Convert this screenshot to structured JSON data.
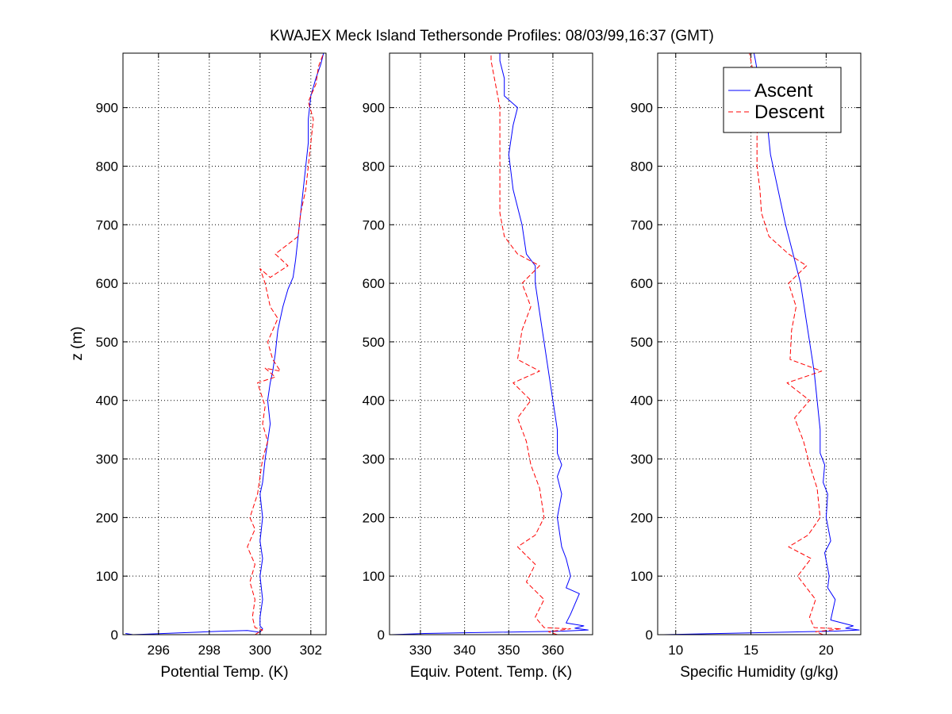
{
  "title": "KWAJEX Meck Island Tethersonde Profiles: 08/03/99,16:37 (GMT)",
  "ylabel": "z (m)",
  "legend": {
    "placement": "top-right of third panel",
    "entries": [
      "Ascent",
      "Descent"
    ]
  },
  "colors": {
    "ascent": "#0000ff",
    "descent": "#ff0000",
    "grid": "#000000",
    "axes": "#000000"
  },
  "chart_data": [
    {
      "type": "line",
      "xlabel": "Potential Temp. (K)",
      "xlim": [
        294.6,
        302.6
      ],
      "ylim": [
        0,
        993
      ],
      "xticks": [
        296,
        298,
        300,
        302
      ],
      "yticks": [
        0,
        100,
        200,
        300,
        400,
        500,
        600,
        700,
        800,
        900
      ],
      "grid": true,
      "series": [
        {
          "name": "Ascent",
          "style": "solid",
          "points": [
            [
              294.7,
              2
            ],
            [
              295.0,
              0
            ],
            [
              298.5,
              6
            ],
            [
              299.5,
              7
            ],
            [
              300.0,
              4
            ],
            [
              300.1,
              10
            ],
            [
              300.0,
              15
            ],
            [
              300.0,
              30
            ],
            [
              300.1,
              60
            ],
            [
              300.0,
              100
            ],
            [
              300.1,
              130
            ],
            [
              300.0,
              160
            ],
            [
              300.1,
              200
            ],
            [
              300.0,
              240
            ],
            [
              300.1,
              260
            ],
            [
              300.2,
              300
            ],
            [
              300.3,
              330
            ],
            [
              300.4,
              360
            ],
            [
              300.3,
              400
            ],
            [
              300.4,
              430
            ],
            [
              300.5,
              450
            ],
            [
              300.6,
              480
            ],
            [
              300.7,
              520
            ],
            [
              300.9,
              560
            ],
            [
              301.1,
              590
            ],
            [
              301.3,
              610
            ],
            [
              301.4,
              640
            ],
            [
              301.5,
              680
            ],
            [
              301.6,
              720
            ],
            [
              301.7,
              760
            ],
            [
              301.8,
              800
            ],
            [
              301.9,
              840
            ],
            [
              301.9,
              880
            ],
            [
              302.0,
              920
            ],
            [
              302.2,
              950
            ],
            [
              302.4,
              975
            ],
            [
              302.5,
              993
            ]
          ]
        },
        {
          "name": "Descent",
          "style": "dashed",
          "points": [
            [
              299.8,
              0
            ],
            [
              300.1,
              8
            ],
            [
              299.8,
              12
            ],
            [
              299.7,
              30
            ],
            [
              299.8,
              60
            ],
            [
              299.6,
              90
            ],
            [
              299.8,
              120
            ],
            [
              299.5,
              150
            ],
            [
              299.8,
              180
            ],
            [
              299.6,
              200
            ],
            [
              299.9,
              240
            ],
            [
              300.0,
              270
            ],
            [
              300.1,
              300
            ],
            [
              300.3,
              330
            ],
            [
              300.1,
              360
            ],
            [
              300.2,
              390
            ],
            [
              299.9,
              430
            ],
            [
              300.6,
              440
            ],
            [
              300.2,
              455
            ],
            [
              300.8,
              450
            ],
            [
              300.5,
              470
            ],
            [
              300.3,
              500
            ],
            [
              300.7,
              540
            ],
            [
              300.4,
              560
            ],
            [
              300.2,
              600
            ],
            [
              300.0,
              625
            ],
            [
              300.4,
              610
            ],
            [
              301.1,
              630
            ],
            [
              300.6,
              650
            ],
            [
              301.5,
              680
            ],
            [
              301.6,
              720
            ],
            [
              301.8,
              760
            ],
            [
              301.9,
              800
            ],
            [
              302.0,
              840
            ],
            [
              302.1,
              880
            ],
            [
              301.9,
              910
            ],
            [
              302.2,
              940
            ],
            [
              302.3,
              970
            ],
            [
              302.5,
              993
            ]
          ]
        }
      ]
    },
    {
      "type": "line",
      "xlabel": "Equiv. Potent. Temp. (K)",
      "xlim": [
        323,
        369
      ],
      "ylim": [
        0,
        993
      ],
      "xticks": [
        330,
        340,
        350,
        360
      ],
      "yticks": [
        0,
        100,
        200,
        300,
        400,
        500,
        600,
        700,
        800,
        900
      ],
      "grid": true,
      "series": [
        {
          "name": "Ascent",
          "style": "solid",
          "points": [
            [
              323.5,
              0
            ],
            [
              331,
              2
            ],
            [
              362,
              6
            ],
            [
              368,
              8
            ],
            [
              365,
              11
            ],
            [
              367,
              15
            ],
            [
              363,
              20
            ],
            [
              364,
              35
            ],
            [
              366,
              70
            ],
            [
              363,
              80
            ],
            [
              364,
              100
            ],
            [
              363,
              130
            ],
            [
              362,
              150
            ],
            [
              361,
              200
            ],
            [
              362,
              240
            ],
            [
              361,
              270
            ],
            [
              362,
              290
            ],
            [
              361,
              310
            ],
            [
              361,
              350
            ],
            [
              360,
              400
            ],
            [
              359,
              450
            ],
            [
              358,
              500
            ],
            [
              357,
              550
            ],
            [
              356,
              600
            ],
            [
              356,
              630
            ],
            [
              354,
              650
            ],
            [
              353,
              700
            ],
            [
              351,
              760
            ],
            [
              350,
              820
            ],
            [
              351,
              870
            ],
            [
              352,
              900
            ],
            [
              349,
              920
            ],
            [
              349,
              950
            ],
            [
              348,
              980
            ],
            [
              348,
              993
            ]
          ]
        },
        {
          "name": "Descent",
          "style": "dashed",
          "points": [
            [
              361,
              0
            ],
            [
              359,
              5
            ],
            [
              364,
              10
            ],
            [
              358,
              12
            ],
            [
              356,
              30
            ],
            [
              358,
              60
            ],
            [
              354,
              90
            ],
            [
              356,
              120
            ],
            [
              352,
              150
            ],
            [
              356,
              170
            ],
            [
              358,
              200
            ],
            [
              357,
              250
            ],
            [
              355,
              290
            ],
            [
              354,
              330
            ],
            [
              352,
              370
            ],
            [
              355,
              400
            ],
            [
              351,
              430
            ],
            [
              357,
              450
            ],
            [
              352,
              470
            ],
            [
              353,
              520
            ],
            [
              355,
              560
            ],
            [
              353,
              600
            ],
            [
              357,
              630
            ],
            [
              352,
              650
            ],
            [
              349,
              680
            ],
            [
              348,
              720
            ],
            [
              348,
              760
            ],
            [
              348,
              800
            ],
            [
              348,
              850
            ],
            [
              348,
              900
            ],
            [
              347,
              940
            ],
            [
              346,
              980
            ],
            [
              346,
              993
            ]
          ]
        }
      ]
    },
    {
      "type": "line",
      "xlabel": "Specific Humidity (g/kg)",
      "xlim": [
        8.8,
        22.3
      ],
      "ylim": [
        0,
        993
      ],
      "xticks": [
        10,
        15,
        20
      ],
      "yticks": [
        0,
        100,
        200,
        300,
        400,
        500,
        600,
        700,
        800,
        900
      ],
      "grid": true,
      "series": [
        {
          "name": "Ascent",
          "style": "solid",
          "points": [
            [
              9.2,
              0
            ],
            [
              13.0,
              2
            ],
            [
              20.5,
              6
            ],
            [
              22.2,
              8
            ],
            [
              21.3,
              11
            ],
            [
              21.8,
              15
            ],
            [
              20.3,
              25
            ],
            [
              20.6,
              60
            ],
            [
              20.1,
              80
            ],
            [
              20.2,
              100
            ],
            [
              19.9,
              140
            ],
            [
              20.3,
              160
            ],
            [
              20.0,
              200
            ],
            [
              20.1,
              240
            ],
            [
              19.8,
              260
            ],
            [
              19.9,
              290
            ],
            [
              19.6,
              310
            ],
            [
              19.6,
              350
            ],
            [
              19.4,
              400
            ],
            [
              19.2,
              450
            ],
            [
              18.9,
              500
            ],
            [
              18.6,
              550
            ],
            [
              18.3,
              600
            ],
            [
              18.0,
              630
            ],
            [
              17.7,
              660
            ],
            [
              17.3,
              700
            ],
            [
              16.8,
              760
            ],
            [
              16.3,
              820
            ],
            [
              16.1,
              870
            ],
            [
              16.2,
              900
            ],
            [
              15.7,
              920
            ],
            [
              15.5,
              950
            ],
            [
              15.3,
              980
            ],
            [
              15.2,
              993
            ]
          ]
        },
        {
          "name": "Descent",
          "style": "dashed",
          "points": [
            [
              19.8,
              0
            ],
            [
              19.3,
              5
            ],
            [
              21.0,
              10
            ],
            [
              19.2,
              12
            ],
            [
              18.9,
              30
            ],
            [
              19.3,
              60
            ],
            [
              18.1,
              100
            ],
            [
              19.0,
              130
            ],
            [
              17.5,
              150
            ],
            [
              18.8,
              170
            ],
            [
              19.6,
              200
            ],
            [
              19.4,
              250
            ],
            [
              18.9,
              290
            ],
            [
              18.5,
              330
            ],
            [
              17.9,
              370
            ],
            [
              18.9,
              400
            ],
            [
              17.4,
              430
            ],
            [
              19.7,
              450
            ],
            [
              17.6,
              470
            ],
            [
              17.7,
              520
            ],
            [
              18.0,
              560
            ],
            [
              17.5,
              600
            ],
            [
              18.7,
              630
            ],
            [
              17.5,
              650
            ],
            [
              16.2,
              680
            ],
            [
              15.7,
              720
            ],
            [
              15.6,
              760
            ],
            [
              15.4,
              800
            ],
            [
              15.4,
              850
            ],
            [
              15.5,
              900
            ],
            [
              15.3,
              940
            ],
            [
              15.0,
              980
            ],
            [
              14.9,
              993
            ]
          ]
        }
      ]
    }
  ]
}
